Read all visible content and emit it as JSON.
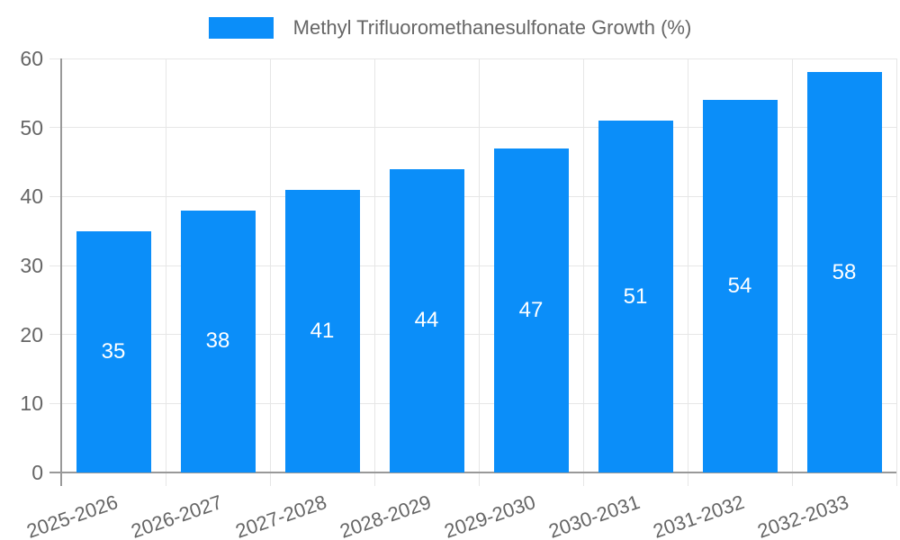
{
  "legend": {
    "label": "Methyl Trifluoromethanesulfonate Growth (%)"
  },
  "chart_data": {
    "type": "bar",
    "title": "Methyl Trifluoromethanesulfonate Growth (%)",
    "categories": [
      "2025-2026",
      "2026-2027",
      "2027-2028",
      "2028-2029",
      "2029-2030",
      "2030-2031",
      "2031-2032",
      "2032-2033"
    ],
    "values": [
      35,
      38,
      41,
      44,
      47,
      51,
      54,
      58
    ],
    "xlabel": "",
    "ylabel": "",
    "ylim": [
      0,
      60
    ],
    "ytick_step": 10,
    "yticks": [
      0,
      10,
      20,
      30,
      40,
      50,
      60
    ],
    "grid": true,
    "legend_position": "top",
    "value_labels": "centered inside bars",
    "x_tick_rotation_deg": -19
  },
  "colors": {
    "bar": "#0b8ef9",
    "grid": "#e6e6e6",
    "axis": "#999999",
    "text": "#666666",
    "value_text": "#ffffff",
    "background": "#ffffff"
  }
}
